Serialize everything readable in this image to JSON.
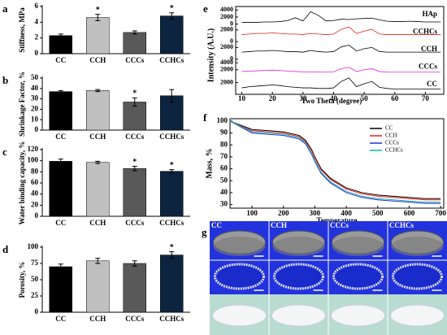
{
  "chart_data": [
    {
      "type": "bar",
      "label": "a",
      "ylabel": "Stiffness, MPa",
      "categories": [
        "CC",
        "CCH",
        "CCCs",
        "CCHCs"
      ],
      "values": [
        2.3,
        4.6,
        2.7,
        4.8
      ],
      "errors": [
        0.2,
        0.4,
        0.2,
        0.4
      ],
      "significance": [
        null,
        "*",
        null,
        "*"
      ],
      "colors": [
        "#000000",
        "#c0c0c0",
        "#595959",
        "#0d2440"
      ],
      "ylim": [
        0,
        6
      ],
      "yticks": [
        0,
        2,
        4,
        6
      ]
    },
    {
      "type": "bar",
      "label": "b",
      "ylabel": "Shrinkage Factor, %",
      "categories": [
        "CC",
        "CCH",
        "CCCs",
        "CCHCs"
      ],
      "values": [
        37,
        38,
        27,
        33
      ],
      "errors": [
        1,
        1,
        4,
        6
      ],
      "significance": [
        null,
        null,
        "*",
        null
      ],
      "colors": [
        "#000000",
        "#c0c0c0",
        "#595959",
        "#0d2440"
      ],
      "ylim": [
        0,
        50
      ],
      "yticks": [
        0,
        10,
        20,
        30,
        40,
        50
      ]
    },
    {
      "type": "bar",
      "label": "c",
      "ylabel": "Water binding capacity, %",
      "categories": [
        "CC",
        "CCH",
        "CCCs",
        "CCHCs"
      ],
      "values": [
        99,
        97,
        86,
        81
      ],
      "errors": [
        4,
        2,
        4,
        3
      ],
      "significance": [
        null,
        null,
        "*",
        "*"
      ],
      "colors": [
        "#000000",
        "#c0c0c0",
        "#595959",
        "#0d2440"
      ],
      "ylim": [
        0,
        120
      ],
      "yticks": [
        0,
        20,
        40,
        60,
        80,
        100,
        120
      ]
    },
    {
      "type": "bar",
      "label": "d",
      "ylabel": "Porosity, %",
      "categories": [
        "CC",
        "CCH",
        "CCCs",
        "CCHCs"
      ],
      "values": [
        70,
        79,
        75,
        88
      ],
      "errors": [
        4,
        4,
        4,
        5
      ],
      "significance": [
        null,
        null,
        null,
        "*"
      ],
      "colors": [
        "#000000",
        "#c0c0c0",
        "#595959",
        "#0d2440"
      ],
      "ylim": [
        0,
        100
      ],
      "yticks": [
        0,
        25,
        50,
        75,
        100
      ]
    },
    {
      "type": "line-stack",
      "label": "e",
      "xlabel": "Two Theta (degree)",
      "ylabel": "Intensity (A.U.)",
      "x": [
        10,
        12.5,
        15,
        17.5,
        20,
        22.5,
        25,
        27.5,
        30,
        32.5,
        35,
        37.5,
        40,
        42.5,
        45,
        47.5,
        50,
        52.5,
        55,
        57.5,
        60,
        62.5,
        65,
        67.5,
        70,
        72.5,
        75
      ],
      "xlim": [
        8,
        76
      ],
      "xticks": [
        10,
        20,
        30,
        40,
        50,
        60,
        70
      ],
      "series": [
        {
          "name": "HAp",
          "color": "#000000",
          "ylim": [
            0,
            5000
          ],
          "yticks": [
            0,
            2000,
            4000
          ],
          "values": [
            500,
            500,
            500,
            600,
            600,
            700,
            1000,
            1800,
            900,
            3500,
            2500,
            900,
            1000,
            1400,
            1300,
            1500,
            1600,
            1700,
            1200,
            800,
            700,
            700,
            800,
            700,
            600,
            600,
            600
          ]
        },
        {
          "name": "CCHCs",
          "color": "#e8201c",
          "ylim": [
            0,
            3000
          ],
          "yticks": [
            0,
            2000
          ],
          "values": [
            1200,
            1300,
            1400,
            1400,
            1500,
            1400,
            1300,
            1300,
            1200,
            1400,
            1300,
            1200,
            1300,
            2100,
            2500,
            1400,
            1800,
            2100,
            1300,
            1200,
            1200,
            1200,
            1200,
            1200,
            1200,
            1200,
            1200
          ]
        },
        {
          "name": "CCH",
          "color": "#000000",
          "ylim": [
            0,
            3000
          ],
          "yticks": [
            0,
            2000
          ],
          "values": [
            1200,
            1300,
            1400,
            1400,
            1500,
            1400,
            1300,
            1300,
            1200,
            1500,
            1300,
            1200,
            1300,
            2100,
            2400,
            1400,
            1800,
            2000,
            1300,
            1200,
            1200,
            1200,
            1200,
            1200,
            1200,
            1200,
            1200
          ]
        },
        {
          "name": "CCCs",
          "color": "#e020d0",
          "ylim": [
            0,
            5000
          ],
          "yticks": [
            2000,
            4000
          ],
          "values": [
            1500,
            1600,
            1700,
            1800,
            1900,
            1800,
            1600,
            1500,
            1400,
            1400,
            1300,
            1300,
            1400,
            2300,
            2700,
            1500,
            2000,
            2300,
            1500,
            1300,
            1300,
            1300,
            1300,
            1300,
            1300,
            1300,
            1300
          ]
        },
        {
          "name": "CC",
          "color": "#000000",
          "ylim": [
            0,
            3000
          ],
          "yticks": [
            2000
          ],
          "values": [
            1100,
            1300,
            1400,
            1500,
            1600,
            1500,
            1300,
            1200,
            1100,
            1100,
            1000,
            1000,
            1100,
            2200,
            2800,
            1300,
            1800,
            2200,
            1200,
            1000,
            900,
            900,
            900,
            900,
            900,
            900,
            900
          ]
        }
      ]
    },
    {
      "type": "line",
      "label": "f",
      "xlabel": "Temperature",
      "ylabel": "Mass, %",
      "x": [
        30,
        100,
        150,
        200,
        250,
        270,
        290,
        300,
        320,
        350,
        400,
        450,
        500,
        550,
        600,
        650,
        700
      ],
      "xlim": [
        30,
        710
      ],
      "xticks": [
        100,
        200,
        300,
        400,
        500,
        600,
        700
      ],
      "ylim": [
        27,
        102
      ],
      "yticks": [
        30,
        40,
        50,
        60,
        70,
        80,
        90,
        100
      ],
      "series": [
        {
          "name": "CC",
          "color": "#000000",
          "values": [
            100,
            93,
            92,
            91,
            88,
            84,
            76,
            70,
            60,
            52,
            44,
            40,
            38,
            37,
            36,
            35,
            35
          ]
        },
        {
          "name": "CCH",
          "color": "#e8201c",
          "values": [
            100,
            92,
            91,
            90,
            87,
            83,
            75,
            69,
            59,
            51,
            43,
            39,
            37,
            36,
            35,
            34,
            34
          ]
        },
        {
          "name": "CCCs",
          "color": "#2030d0",
          "values": [
            100,
            90,
            89,
            88,
            85,
            81,
            72,
            66,
            56,
            48,
            40,
            36,
            34,
            33,
            32,
            31,
            31
          ]
        },
        {
          "name": "CCHCs",
          "color": "#10b0b0",
          "values": [
            100,
            91,
            90,
            89,
            86,
            82,
            73,
            67,
            57,
            49,
            41,
            37,
            35,
            34,
            33,
            32,
            32
          ]
        }
      ]
    }
  ],
  "images": {
    "label": "g",
    "columns": [
      "CC",
      "CCH",
      "CCCs",
      "CCHCs"
    ]
  }
}
